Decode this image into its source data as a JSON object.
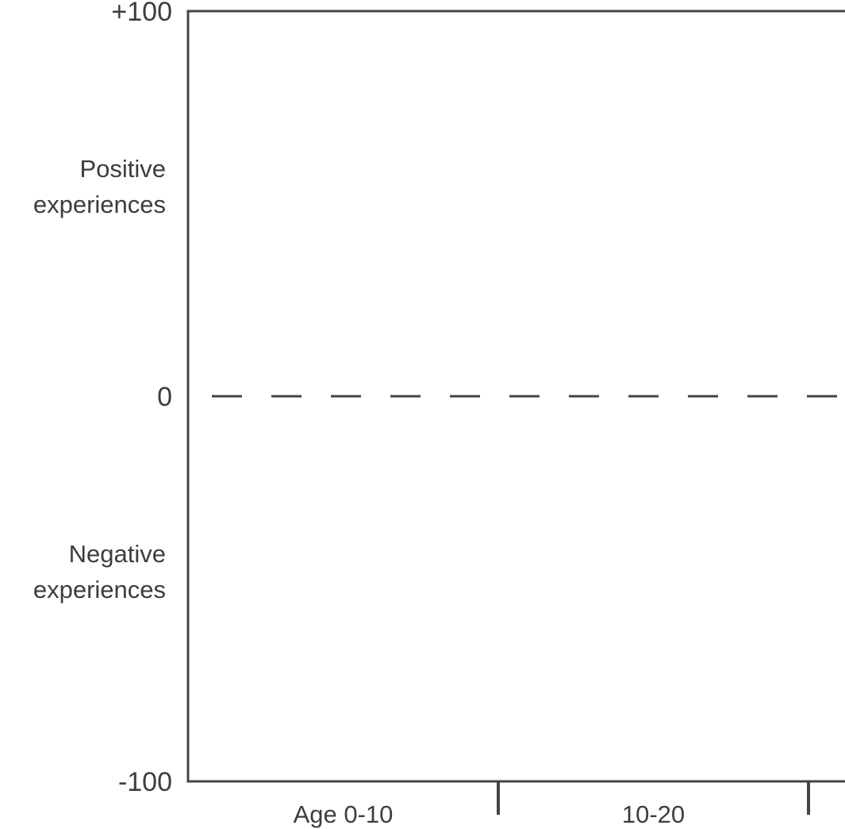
{
  "chart_data": {
    "type": "line",
    "title": "",
    "xlabel": "",
    "ylabel": "",
    "ylim": [
      -100,
      100
    ],
    "yticks": [
      {
        "value": 100,
        "label": "+100"
      },
      {
        "value": 0,
        "label": "0"
      },
      {
        "value": -100,
        "label": "-100"
      }
    ],
    "categories": [
      "Age 0-10",
      "10-20"
    ],
    "y_annotations": [
      {
        "value": 50,
        "lines": [
          "Positive",
          "experiences"
        ]
      },
      {
        "value": -50,
        "lines": [
          "Negative",
          "experiences"
        ]
      }
    ],
    "reference_line": {
      "value": 0,
      "style": "dashed"
    },
    "series": [],
    "grid": false,
    "legend": "none",
    "colors": {
      "axis": "#444444",
      "text": "#3d3d3d"
    }
  }
}
